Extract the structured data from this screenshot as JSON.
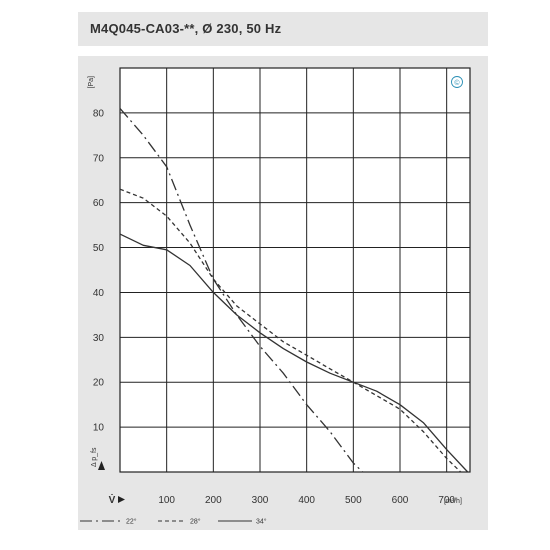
{
  "header": {
    "title": "M4Q045-CA03-**, Ø 230, 50 Hz"
  },
  "chart_data": {
    "type": "line",
    "title": "M4Q045-CA03-**, Ø 230, 50 Hz",
    "xlabel": "V̇",
    "xunit": "[m³/h]",
    "ylabel": "Δ p_fs",
    "yunit": "[Pa]",
    "xlim": [
      0,
      750
    ],
    "ylim": [
      0,
      90
    ],
    "xticks": [
      100,
      200,
      300,
      400,
      500,
      600,
      700
    ],
    "yticks": [
      10,
      20,
      30,
      40,
      50,
      60,
      70,
      80
    ],
    "grid": true,
    "badge": "©",
    "series": [
      {
        "name": "22°",
        "style": "long-dash",
        "x": [
          0,
          50,
          100,
          150,
          200,
          250,
          300,
          350,
          400,
          450,
          500,
          520
        ],
        "y": [
          81,
          75,
          68,
          55,
          43,
          35,
          28,
          22,
          15,
          9,
          2,
          0
        ]
      },
      {
        "name": "28°",
        "style": "short-dash",
        "x": [
          0,
          50,
          100,
          150,
          200,
          250,
          300,
          350,
          400,
          450,
          500,
          550,
          600,
          650,
          700,
          730
        ],
        "y": [
          63,
          61,
          57,
          51,
          43,
          37,
          33,
          29,
          26,
          23,
          20,
          17,
          14,
          9,
          3,
          0
        ]
      },
      {
        "name": "34°",
        "style": "solid",
        "x": [
          0,
          50,
          100,
          150,
          200,
          250,
          300,
          350,
          400,
          450,
          500,
          550,
          600,
          650,
          700,
          745
        ],
        "y": [
          53,
          50.5,
          49.5,
          46,
          40,
          35,
          31,
          27.5,
          24.5,
          22,
          20,
          18,
          15,
          11,
          5,
          0
        ]
      }
    ]
  }
}
